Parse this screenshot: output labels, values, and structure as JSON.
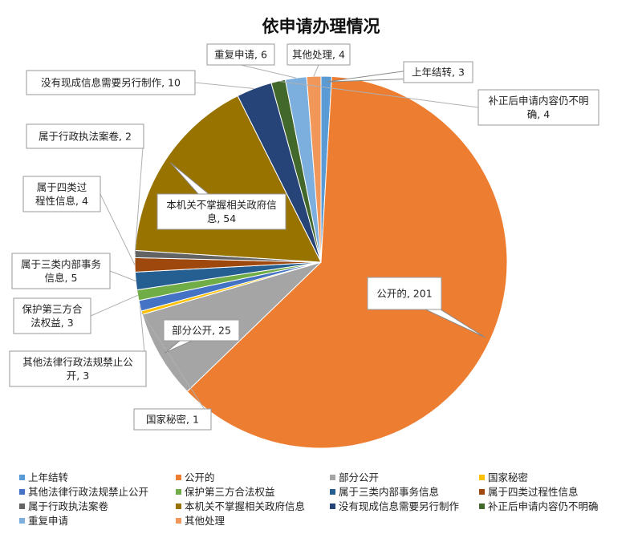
{
  "chart_data": {
    "type": "pie",
    "title": "依申请办理情况",
    "categories": [
      "上年结转",
      "公开的",
      "部分公开",
      "国家秘密",
      "其他法律行政法规禁止公开",
      "保护第三方合法权益",
      "属于三类内部事务信息",
      "属于四类过程性信息",
      "属于行政执法案卷",
      "本机关不掌握相关政府信息",
      "没有现成信息需要另行制作",
      "补正后申请内容仍不明确",
      "重复申请",
      "其他处理"
    ],
    "values": [
      3,
      201,
      25,
      1,
      3,
      3,
      5,
      4,
      2,
      54,
      10,
      4,
      6,
      4
    ],
    "colors": [
      "#5b9bd5",
      "#ed7d31",
      "#a5a5a5",
      "#ffc000",
      "#4472c4",
      "#70ad47",
      "#255e91",
      "#9e480e",
      "#636363",
      "#997300",
      "#264478",
      "#43682b",
      "#7cafdd",
      "#f1975a"
    ],
    "data_labels": [
      [
        "上年结转, 3"
      ],
      [
        "公开的, 201"
      ],
      [
        "部分公开, 25"
      ],
      [
        "国家秘密, 1"
      ],
      [
        "其他法律行政法规禁止公",
        "开, 3"
      ],
      [
        "保护第三方合",
        "法权益, 3"
      ],
      [
        "属于三类内部事务",
        "信息, 5"
      ],
      [
        "属于四类过",
        "程性信息, 4"
      ],
      [
        "属于行政执法案卷, 2"
      ],
      [
        "本机关不掌握相关政府信",
        "息, 54"
      ],
      [
        "没有现成信息需要另行制作, 10"
      ],
      [
        "补正后申请内容仍不明",
        "确, 4"
      ],
      [
        "重复申请, 6"
      ],
      [
        "其他处理, 4"
      ]
    ],
    "legend_position": "bottom",
    "start_angle": "12 o'clock",
    "direction": "clockwise"
  }
}
